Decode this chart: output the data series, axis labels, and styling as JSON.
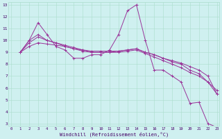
{
  "xlabel": "Windchill (Refroidissement éolien,°C)",
  "bg_color": "#cff0f0",
  "line_color": "#993399",
  "grid_color": "#aaddcc",
  "series": [
    {
      "x": [
        1,
        2,
        3,
        4,
        5,
        6,
        7,
        8,
        9,
        10,
        11,
        12,
        13,
        14,
        15,
        16,
        17,
        18,
        19,
        20,
        21,
        22,
        23
      ],
      "y": [
        9.0,
        10.0,
        11.5,
        10.5,
        9.5,
        9.2,
        8.5,
        8.5,
        8.8,
        8.8,
        9.2,
        10.5,
        12.5,
        13.0,
        10.0,
        7.5,
        7.5,
        7.0,
        6.5,
        4.7,
        4.8,
        3.0,
        2.7
      ]
    },
    {
      "x": [
        1,
        2,
        3,
        4,
        5,
        6,
        7,
        8,
        9,
        10,
        11,
        12,
        13,
        14,
        15,
        16,
        17,
        18,
        19,
        20,
        21,
        22,
        23
      ],
      "y": [
        9.0,
        10.0,
        10.5,
        10.0,
        9.8,
        9.5,
        9.3,
        9.1,
        9.0,
        9.0,
        9.0,
        9.1,
        9.2,
        9.3,
        9.0,
        8.8,
        8.5,
        8.2,
        8.0,
        7.5,
        7.2,
        6.5,
        5.8
      ]
    },
    {
      "x": [
        1,
        2,
        3,
        4,
        5,
        6,
        7,
        8,
        9,
        10,
        11,
        12,
        13,
        14,
        15,
        16,
        17,
        18,
        19,
        20,
        21,
        22,
        23
      ],
      "y": [
        9.0,
        9.8,
        10.3,
        10.0,
        9.8,
        9.6,
        9.4,
        9.2,
        9.0,
        9.0,
        9.0,
        9.0,
        9.1,
        9.2,
        8.9,
        8.6,
        8.3,
        8.0,
        7.7,
        7.3,
        7.0,
        6.5,
        5.5
      ]
    },
    {
      "x": [
        1,
        2,
        3,
        4,
        5,
        6,
        7,
        8,
        9,
        10,
        11,
        12,
        13,
        14,
        15,
        16,
        17,
        18,
        19,
        20,
        21,
        22,
        23
      ],
      "y": [
        9.0,
        9.5,
        9.8,
        9.7,
        9.6,
        9.5,
        9.3,
        9.2,
        9.1,
        9.1,
        9.1,
        9.1,
        9.2,
        9.3,
        9.0,
        8.8,
        8.5,
        8.3,
        8.1,
        7.8,
        7.5,
        7.0,
        5.5
      ]
    }
  ],
  "ylim": [
    3,
    13
  ],
  "yticks": [
    3,
    4,
    5,
    6,
    7,
    8,
    9,
    10,
    11,
    12,
    13
  ],
  "xlim": [
    0,
    23
  ],
  "xticks": [
    0,
    1,
    2,
    3,
    4,
    5,
    6,
    7,
    8,
    9,
    10,
    11,
    12,
    13,
    14,
    15,
    16,
    17,
    18,
    19,
    20,
    21,
    22,
    23
  ]
}
